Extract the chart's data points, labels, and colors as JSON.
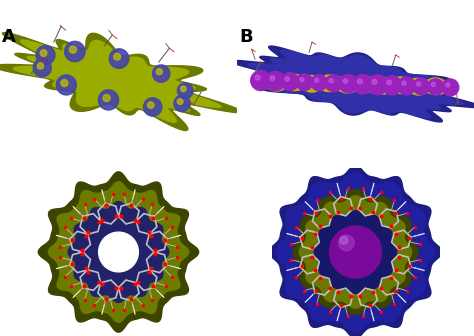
{
  "panel_A_label": "A",
  "panel_B_label": "B",
  "label_fontsize": 13,
  "label_fontweight": "bold",
  "label_color": "black",
  "background_color": "white",
  "figsize": [
    4.74,
    3.36
  ],
  "dpi": 100,
  "colors": {
    "olive_dark": "#4a5200",
    "olive_mid": "#7a8c00",
    "olive_light": "#a0b000",
    "blue_dark": "#18186a",
    "blue_mid": "#2a2a9a",
    "blue_light": "#3838b8",
    "purple": "#8B008B",
    "purple_light": "#cc44cc",
    "yellow": "#d4c800",
    "yellow2": "#c8b400",
    "red": "#cc0000",
    "silver": "#c0c0c0",
    "white": "#ffffff",
    "brown": "#8B4513"
  }
}
